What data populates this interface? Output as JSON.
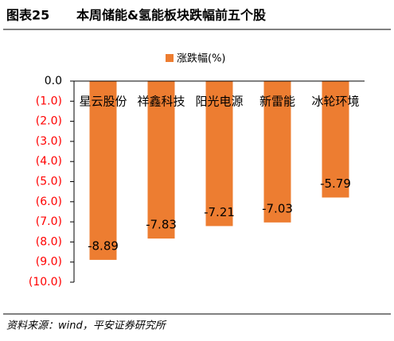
{
  "chart_data": {
    "type": "bar",
    "figure_label": "图表25",
    "title": "本周储能&氢能板块跌幅前五个股",
    "source": "资料来源：wind，平安证券研究所",
    "categories": [
      "星云股份",
      "祥鑫科技",
      "阳光电源",
      "新雷能",
      "冰轮环境"
    ],
    "series": [
      {
        "name": "涨跌幅(%)",
        "color": "#ed7d31",
        "values": [
          -8.89,
          -7.83,
          -7.21,
          -7.03,
          -5.79
        ]
      }
    ],
    "ylim": [
      0,
      -10
    ],
    "yticks": [
      {
        "value": 0,
        "label": "0.0"
      },
      {
        "value": -1,
        "label": "(1.0)"
      },
      {
        "value": -2,
        "label": "(2.0)"
      },
      {
        "value": -3,
        "label": "(3.0)"
      },
      {
        "value": -4,
        "label": "(4.0)"
      },
      {
        "value": -5,
        "label": "(5.0)"
      },
      {
        "value": -6,
        "label": "(6.0)"
      },
      {
        "value": -7,
        "label": "(7.0)"
      },
      {
        "value": -8,
        "label": "(8.0)"
      },
      {
        "value": -9,
        "label": "(9.0)"
      },
      {
        "value": -10,
        "label": "(10.0)"
      }
    ],
    "negative_tick_color": "#ff0000",
    "grid": false,
    "legend": "top"
  }
}
